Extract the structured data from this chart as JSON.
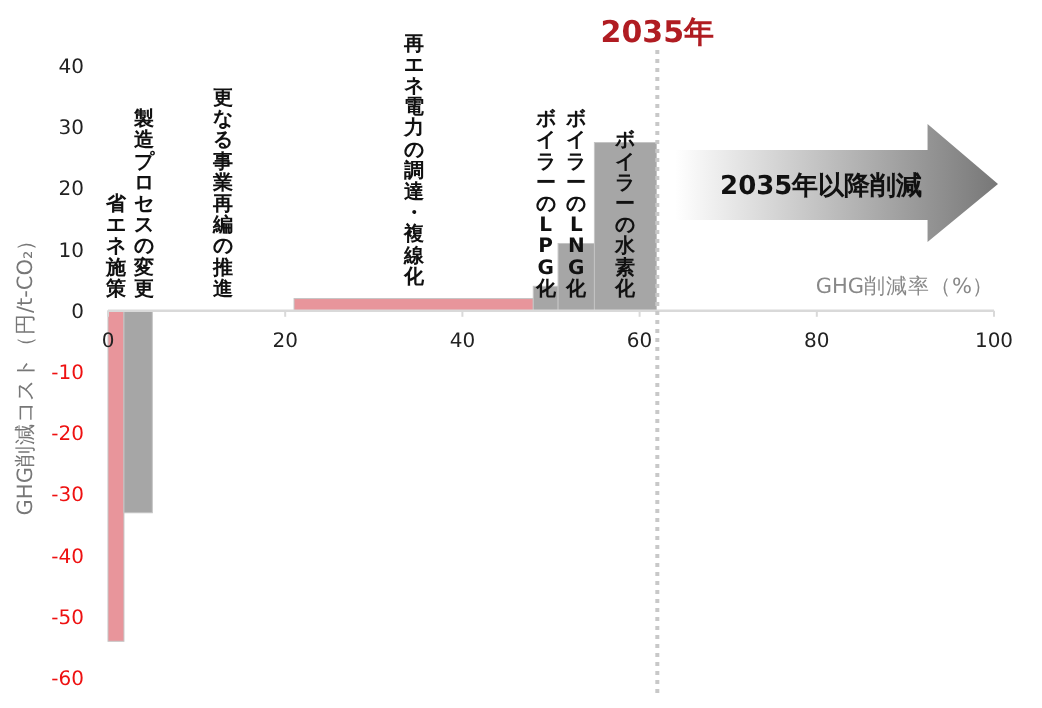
{
  "chart_data": {
    "type": "histogram",
    "bins": [
      0,
      1.8,
      5,
      21,
      48,
      50.8,
      54.9,
      61.9
    ],
    "values": [
      -54,
      -33,
      0,
      2,
      4,
      11,
      27.5
    ],
    "colors": [
      "#e8959b",
      "#a6a6a6",
      "#a6a6a6",
      "#e8959b",
      "#a6a6a6",
      "#a6a6a6",
      "#a6a6a6"
    ],
    "xlim": [
      0,
      100
    ],
    "xticks": [
      0,
      20,
      40,
      60,
      80,
      100
    ],
    "ylim": [
      -60,
      40
    ],
    "yticks": [
      -60,
      -50,
      -40,
      -30,
      -20,
      -10,
      0,
      10,
      20,
      30,
      40
    ],
    "xlabel": "GHG削減率（%）",
    "ylabel": "GHG削減コスト（円/t-CO₂）",
    "annotations": [
      "省エネ施策",
      "製造プロセスの変更",
      "更なる事業再編の推進",
      "再エネ電力の調達・複線化",
      "ボイラーのLPG化",
      "ボイラーのLNG化",
      "ボイラーの水素化",
      "2035年以降削減"
    ],
    "ref_lines": [
      {
        "axis": "x",
        "value": 62,
        "label": "2035年",
        "color": "#c8c8c8",
        "line_style": "dotted"
      }
    ],
    "grid": false
  }
}
